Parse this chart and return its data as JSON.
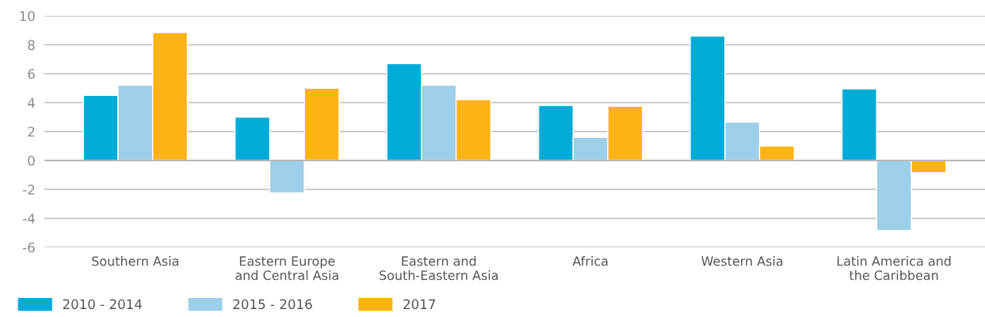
{
  "chart_data": {
    "type": "bar",
    "categories": [
      "Southern Asia",
      "Eastern Europe\nand Central Asia",
      "Eastern and\nSouth-Eastern Asia",
      "Africa",
      "Western Asia",
      "Latin America and\nthe Caribbean"
    ],
    "series": [
      {
        "name": "2010 - 2014",
        "color": "#00acd7",
        "values": [
          4.5,
          3.0,
          6.7,
          3.8,
          8.6,
          4.95
        ]
      },
      {
        "name": "2015 - 2016",
        "color": "#9dcfe8",
        "values": [
          5.2,
          -2.25,
          5.2,
          1.6,
          2.65,
          -4.85
        ]
      },
      {
        "name": "2017",
        "color": "#fcb315",
        "values": [
          8.85,
          5.0,
          4.2,
          3.75,
          1.0,
          -0.85
        ]
      }
    ],
    "ylim": [
      -6,
      10
    ],
    "yticks": [
      {
        "value": -6,
        "label": "-6"
      },
      {
        "value": -4,
        "label": "-4"
      },
      {
        "value": -2,
        "label": "-2"
      },
      0,
      2,
      4,
      6,
      8,
      10
    ],
    "grid": "y",
    "legend": "bottom left"
  }
}
